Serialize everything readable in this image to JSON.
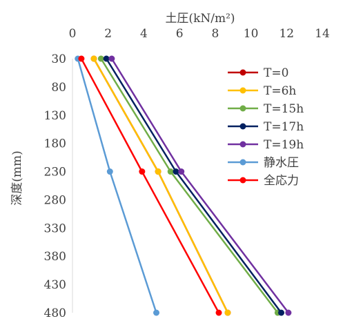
{
  "chart_data": {
    "type": "line",
    "title": "",
    "xlabel": "土圧(kN/m²)",
    "ylabel": "深度(mm)",
    "xlim": [
      0,
      14
    ],
    "ylim": [
      30,
      480
    ],
    "y_inverted": true,
    "x_axis_position": "top",
    "x_ticks": [
      0,
      2,
      4,
      6,
      8,
      10,
      12,
      14
    ],
    "y_ticks": [
      30,
      80,
      130,
      180,
      230,
      280,
      330,
      380,
      430,
      480
    ],
    "grid": false,
    "legend_position": "inside-top-right",
    "series": [
      {
        "name": "T=0",
        "color": "#c00000",
        "points": [
          [
            1.2,
            30
          ],
          [
            4.8,
            230
          ],
          [
            8.7,
            480
          ]
        ]
      },
      {
        "name": "T=6h",
        "color": "#ffc000",
        "points": [
          [
            1.2,
            30
          ],
          [
            4.8,
            230
          ],
          [
            8.7,
            480
          ]
        ]
      },
      {
        "name": "T=15h",
        "color": "#70ad47",
        "points": [
          [
            1.6,
            30
          ],
          [
            5.5,
            230
          ],
          [
            11.5,
            480
          ]
        ]
      },
      {
        "name": "T=17h",
        "color": "#002060",
        "points": [
          [
            1.9,
            30
          ],
          [
            5.8,
            230
          ],
          [
            11.7,
            480
          ]
        ]
      },
      {
        "name": "T=19h",
        "color": "#7030a0",
        "points": [
          [
            2.2,
            30
          ],
          [
            6.1,
            230
          ],
          [
            12.1,
            480
          ]
        ]
      },
      {
        "name": "静水圧",
        "color": "#5b9bd5",
        "points": [
          [
            0.3,
            30
          ],
          [
            2.1,
            230
          ],
          [
            4.7,
            480
          ]
        ]
      },
      {
        "name": "全応力",
        "color": "#ff0000",
        "points": [
          [
            0.5,
            30
          ],
          [
            3.9,
            230
          ],
          [
            8.2,
            480
          ]
        ]
      }
    ]
  }
}
